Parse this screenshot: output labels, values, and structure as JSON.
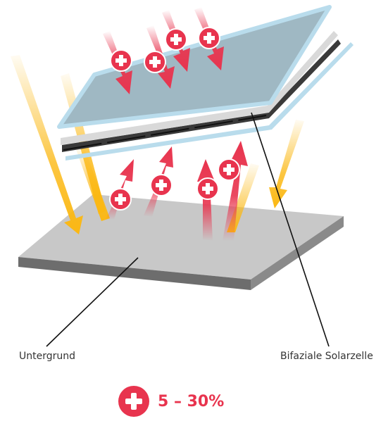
{
  "labels": {
    "ground": "Untergrund",
    "panel": "Bifaziale Solarzelle"
  },
  "gain": {
    "text": "5 – 30%",
    "color": "#e8344e"
  },
  "colors": {
    "sun_arrow": "#fbb813",
    "gain_arrow": "#e8344e",
    "ground_top": "#c8c8c8",
    "ground_side": "#6d6d6d",
    "glass": "#b9dcec",
    "panel_face": "#9fb8c3"
  },
  "icons": [
    "plus-badge-icon",
    "sun-ray-arrow-icon",
    "gain-arrow-icon"
  ]
}
